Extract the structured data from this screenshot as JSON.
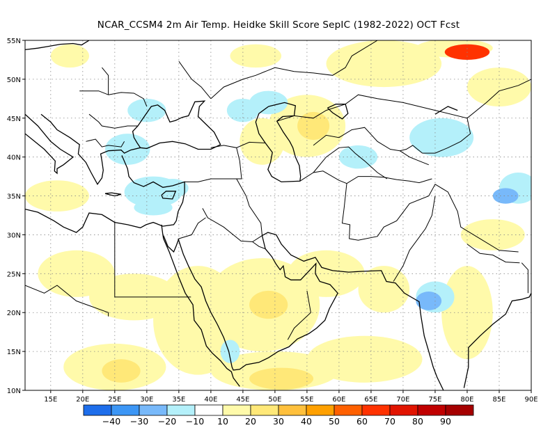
{
  "title": "NCAR_CCSM4  2m Air Temp. Heidke Skill Score SepIC (1982-2022) OCT Fcst",
  "chart_data": {
    "type": "heatmap",
    "title": "NCAR_CCSM4  2m Air Temp. Heidke Skill Score SepIC (1982-2022) OCT Fcst",
    "xlim": [
      11,
      90
    ],
    "ylim": [
      10,
      55
    ],
    "x_ticks": [
      15,
      20,
      25,
      30,
      35,
      40,
      45,
      50,
      55,
      60,
      65,
      70,
      75,
      80,
      85,
      90
    ],
    "y_ticks": [
      10,
      15,
      20,
      25,
      30,
      35,
      40,
      45,
      50,
      55
    ],
    "x_tick_labels": [
      "15E",
      "20E",
      "25E",
      "30E",
      "35E",
      "40E",
      "45E",
      "50E",
      "55E",
      "60E",
      "65E",
      "70E",
      "75E",
      "80E",
      "85E",
      "90E"
    ],
    "y_tick_labels": [
      "10N",
      "15N",
      "20N",
      "25N",
      "30N",
      "35N",
      "40N",
      "45N",
      "50N",
      "55N"
    ],
    "grid": true,
    "colorbar": {
      "levels": [
        -40,
        -30,
        -20,
        -10,
        10,
        20,
        30,
        40,
        50,
        60,
        70,
        80,
        90
      ],
      "labels": [
        "-40",
        "-30",
        "-20",
        "-10",
        "10",
        "20",
        "30",
        "40",
        "50",
        "60",
        "70",
        "80",
        "90"
      ],
      "colors": [
        "#1e6eeb",
        "#3c96f5",
        "#78b9fa",
        "#b4f0fa",
        "#ffffff",
        "#fffaaa",
        "#ffe878",
        "#ffc03c",
        "#ffa000",
        "#ff6000",
        "#ff3200",
        "#e11400",
        "#c00000",
        "#a50000"
      ]
    },
    "regions": [
      {
        "lon": 18,
        "lat": 53,
        "rx": 3,
        "ry": 1.5,
        "value": 15
      },
      {
        "lon": 47,
        "lat": 53,
        "rx": 4,
        "ry": 1.5,
        "value": 15
      },
      {
        "lon": 67,
        "lat": 52,
        "rx": 9,
        "ry": 3,
        "value": 15
      },
      {
        "lon": 78,
        "lat": 54,
        "rx": 6,
        "ry": 1.2,
        "value": 15
      },
      {
        "lon": 80,
        "lat": 53.5,
        "rx": 3.5,
        "ry": 1,
        "value": 65
      },
      {
        "lon": 85,
        "lat": 49,
        "rx": 5,
        "ry": 2.5,
        "value": 15
      },
      {
        "lon": 55,
        "lat": 44,
        "rx": 6,
        "ry": 4,
        "value": 15
      },
      {
        "lon": 56,
        "lat": 44,
        "rx": 2.5,
        "ry": 1.8,
        "value": 25
      },
      {
        "lon": 48,
        "lat": 42,
        "rx": 3.5,
        "ry": 3,
        "value": 15
      },
      {
        "lon": 16,
        "lat": 35,
        "rx": 5,
        "ry": 2,
        "value": 15
      },
      {
        "lon": 19,
        "lat": 25,
        "rx": 6,
        "ry": 3,
        "value": 15
      },
      {
        "lon": 28,
        "lat": 22,
        "rx": 7,
        "ry": 3,
        "value": 15
      },
      {
        "lon": 25,
        "lat": 13,
        "rx": 8,
        "ry": 3,
        "value": 15
      },
      {
        "lon": 26,
        "lat": 12.5,
        "rx": 3,
        "ry": 1.5,
        "value": 25
      },
      {
        "lon": 38,
        "lat": 19,
        "rx": 7,
        "ry": 7,
        "value": 15
      },
      {
        "lon": 48,
        "lat": 21,
        "rx": 9,
        "ry": 6,
        "value": 15
      },
      {
        "lon": 49,
        "lat": 21,
        "rx": 3,
        "ry": 1.8,
        "value": 25
      },
      {
        "lon": 50,
        "lat": 12.5,
        "rx": 10,
        "ry": 2.5,
        "value": 15
      },
      {
        "lon": 51,
        "lat": 11.5,
        "rx": 5,
        "ry": 1.4,
        "value": 25
      },
      {
        "lon": 58,
        "lat": 25,
        "rx": 6,
        "ry": 3,
        "value": 15
      },
      {
        "lon": 67,
        "lat": 23,
        "rx": 4,
        "ry": 3,
        "value": 15
      },
      {
        "lon": 64,
        "lat": 14,
        "rx": 9,
        "ry": 3,
        "value": 15
      },
      {
        "lon": 80,
        "lat": 20,
        "rx": 4,
        "ry": 6,
        "value": 15
      },
      {
        "lon": 84,
        "lat": 30,
        "rx": 5,
        "ry": 2,
        "value": 15
      },
      {
        "lon": 30,
        "lat": 46,
        "rx": 3,
        "ry": 1.5,
        "value": -15
      },
      {
        "lon": 45,
        "lat": 46,
        "rx": 2.5,
        "ry": 1.5,
        "value": -15
      },
      {
        "lon": 49,
        "lat": 47,
        "rx": 3,
        "ry": 1.5,
        "value": -15
      },
      {
        "lon": 27,
        "lat": 41,
        "rx": 3.5,
        "ry": 2,
        "value": -15
      },
      {
        "lon": 31,
        "lat": 35.5,
        "rx": 4.5,
        "ry": 2,
        "value": -15
      },
      {
        "lon": 34,
        "lat": 36,
        "rx": 2.5,
        "ry": 1.2,
        "value": -15
      },
      {
        "lon": 31,
        "lat": 33.5,
        "rx": 3,
        "ry": 1,
        "value": -15
      },
      {
        "lon": 76,
        "lat": 42.5,
        "rx": 5,
        "ry": 2.5,
        "value": -15
      },
      {
        "lon": 88,
        "lat": 36,
        "rx": 3,
        "ry": 2,
        "value": -15
      },
      {
        "lon": 86,
        "lat": 35,
        "rx": 2,
        "ry": 1,
        "value": -25
      },
      {
        "lon": 75,
        "lat": 22,
        "rx": 3,
        "ry": 2,
        "value": -15
      },
      {
        "lon": 74,
        "lat": 21.5,
        "rx": 2,
        "ry": 1.2,
        "value": -25
      },
      {
        "lon": 63,
        "lat": 40,
        "rx": 3,
        "ry": 1.5,
        "value": -15
      },
      {
        "lon": 43,
        "lat": 15,
        "rx": 1.5,
        "ry": 1.5,
        "value": -15
      }
    ]
  },
  "icons": {
    "coastlines": "coastline-outline",
    "borders": "country-border-lines"
  }
}
